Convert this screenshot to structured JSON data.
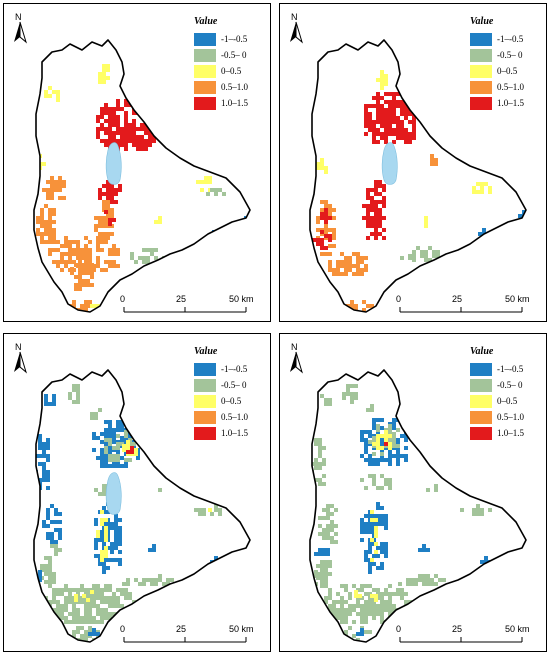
{
  "legend": {
    "title": "Value",
    "classes": [
      {
        "label": "-1–-0.5",
        "color": "#1f7fc4"
      },
      {
        "label": "-0.5– 0",
        "color": "#a3c49a"
      },
      {
        "label": "0–0.5",
        "color": "#ffff66"
      },
      {
        "label": "0.5–1.0",
        "color": "#f7923a"
      },
      {
        "label": "1.0–1.5",
        "color": "#e31a1c"
      }
    ]
  },
  "north_label": "N",
  "scale": {
    "ticks": [
      "0",
      "25",
      "50 km"
    ]
  },
  "lake_color": "#a8d8f0",
  "panels": [
    {
      "id": "top-left",
      "show_lake": true
    },
    {
      "id": "top-right",
      "show_lake": true
    },
    {
      "id": "bottom-left",
      "show_lake": true
    },
    {
      "id": "bottom-right",
      "show_lake": false
    }
  ]
}
